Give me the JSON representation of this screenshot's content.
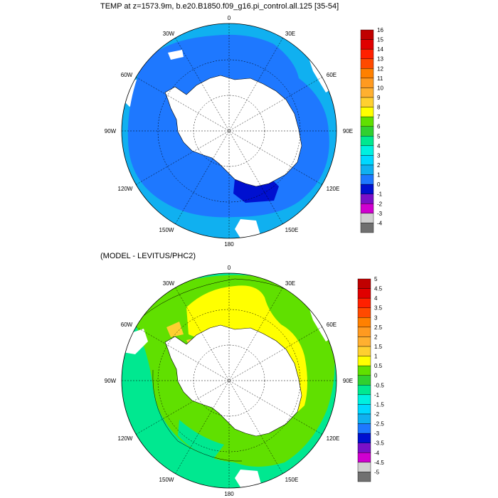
{
  "panel1": {
    "title": "TEMP at z=1573.9m, b.e20.B1850.f09_g16.pi_control.all.125 [35-54]",
    "lon_labels": {
      "top": "0",
      "tl": "30W",
      "tr": "30E",
      "ul": "60W",
      "ur": "60E",
      "l": "90W",
      "r": "90E",
      "ll": "120W",
      "lr": "120E",
      "bl": "150W",
      "br": "150E",
      "bottom": "180"
    },
    "colorbar": {
      "labels": [
        "16",
        "15",
        "14",
        "13",
        "12",
        "11",
        "10",
        "9",
        "8",
        "7",
        "6",
        "5",
        "4",
        "3",
        "2",
        "1",
        "0",
        "-1",
        "-2",
        "-3",
        "-4"
      ],
      "colors": [
        "#c00000",
        "#e00000",
        "#ff2000",
        "#ff4a00",
        "#ff8000",
        "#ff9a20",
        "#ffb030",
        "#ffd030",
        "#ffff00",
        "#60e000",
        "#30d030",
        "#00e890",
        "#00f0e0",
        "#00d8ff",
        "#10b0f0",
        "#1e78ff",
        "#0010d0",
        "#7a10c8",
        "#d000d0",
        "#d0d0d0",
        "#707070"
      ]
    }
  },
  "panel2": {
    "title": "(MODEL - LEVITUS/PHC2)",
    "lon_labels": {
      "top": "0",
      "tl": "30W",
      "tr": "30E",
      "ul": "60W",
      "ur": "60E",
      "l": "90W",
      "r": "90E",
      "ll": "120W",
      "lr": "120E",
      "bl": "150W",
      "br": "150E",
      "bottom": "180"
    },
    "colorbar": {
      "labels": [
        "5",
        "4.5",
        "4",
        "3.5",
        "3",
        "2.5",
        "2",
        "1.5",
        "1",
        "0.5",
        "0",
        "-0.5",
        "-1",
        "-1.5",
        "-2",
        "-2.5",
        "-3",
        "-3.5",
        "-4",
        "-4.5",
        "-5"
      ],
      "colors": [
        "#c00000",
        "#e00000",
        "#ff2000",
        "#ff4a00",
        "#ff8000",
        "#ff9a20",
        "#ffb030",
        "#ffd030",
        "#ffff00",
        "#60e000",
        "#30d030",
        "#00e890",
        "#00f0e0",
        "#00d8ff",
        "#10b0f0",
        "#1e78ff",
        "#0010d0",
        "#7a10c8",
        "#d000d0",
        "#d0d0d0",
        "#707070"
      ]
    }
  }
}
